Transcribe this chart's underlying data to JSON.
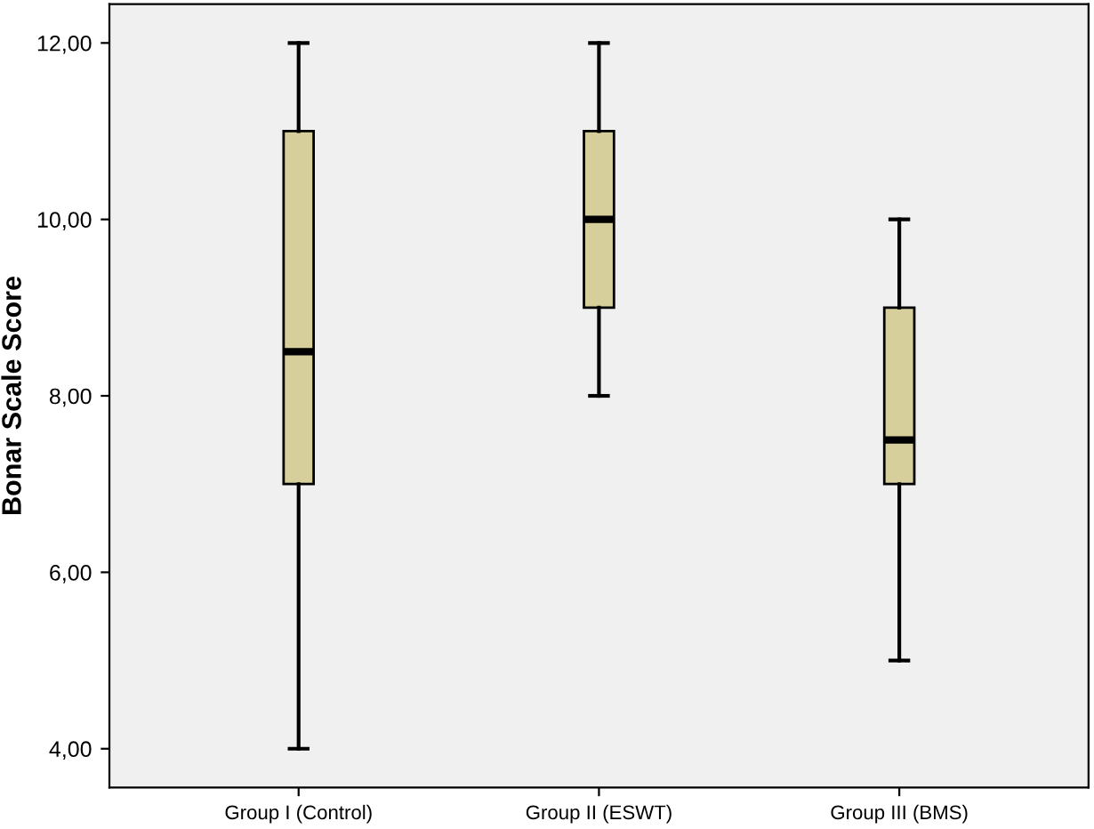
{
  "chart_data": {
    "type": "box",
    "ylabel": "Bonar Scale Score",
    "categories": [
      "Group I (Control)",
      "Group II (ESWT)",
      "Group III (BMS)"
    ],
    "boxes": [
      {
        "low": 4,
        "q1": 7,
        "median": 8.5,
        "q3": 11,
        "high": 12
      },
      {
        "low": 8,
        "q1": 9,
        "median": 10,
        "q3": 11,
        "high": 12
      },
      {
        "low": 5,
        "q1": 7,
        "median": 7.5,
        "q3": 9,
        "high": 10
      }
    ],
    "color": "#d6cf9b",
    "ylim": [
      3.56,
      12.44
    ],
    "yticks": [
      {
        "value": 4,
        "label": "4,00"
      },
      {
        "value": 6,
        "label": "6,00"
      },
      {
        "value": 8,
        "label": "8,00"
      },
      {
        "value": 10,
        "label": "10,00"
      },
      {
        "value": 12,
        "label": "12,00"
      }
    ],
    "grid": false
  }
}
